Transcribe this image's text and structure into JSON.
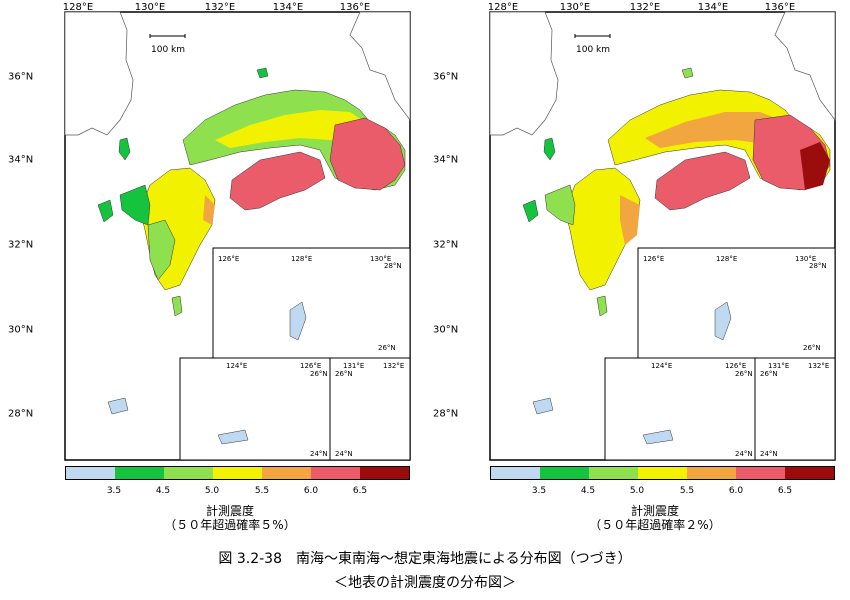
{
  "colors": {
    "bins": [
      "#bfdaf0",
      "#15c33f",
      "#8fe04e",
      "#f2f200",
      "#f2a640",
      "#ea5c69",
      "#9b0d0d"
    ],
    "land_outline": "#333333",
    "ocean": "#ffffff"
  },
  "map": {
    "lon_labels": [
      "128°E",
      "130°E",
      "132°E",
      "134°E",
      "136°E"
    ],
    "lat_labels": [
      "36°N",
      "34°N",
      "32°N",
      "30°N",
      "28°N"
    ],
    "scale_bar": "100 km",
    "inset_okinawa": {
      "lon": [
        "126°E",
        "128°E",
        "130°E"
      ],
      "lat": [
        "28°N",
        "26°N"
      ]
    },
    "inset_sakishima": {
      "lon": [
        "124°E",
        "126°E"
      ],
      "lat": [
        "26°N",
        "24°N"
      ]
    },
    "inset_daito": {
      "lon": [
        "131°E",
        "132°E"
      ],
      "lat": [
        "26°N",
        "24°N"
      ]
    }
  },
  "legend": {
    "ticks": [
      "3.5",
      "4.5",
      "5.0",
      "5.5",
      "6.0",
      "6.5"
    ],
    "title": "計測震度"
  },
  "panels": [
    {
      "subtitle": "（５０年超過確率５%）"
    },
    {
      "subtitle": "（５０年超過確率２%）"
    }
  ],
  "caption": {
    "line1": "図 3.2-38　南海～東南海～想定東海地震による分布図（つづき）",
    "line2": "＜地表の計測震度の分布図＞"
  }
}
